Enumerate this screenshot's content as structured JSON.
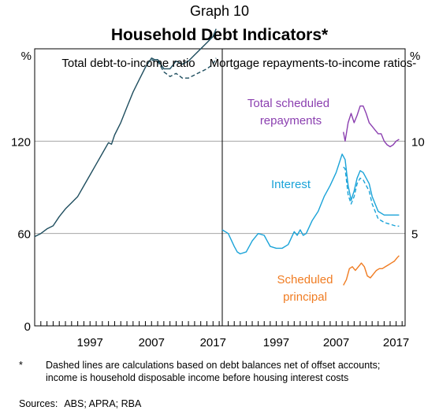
{
  "graph_number": "Graph 10",
  "title": "Household Debt Indicators*",
  "footnote": {
    "marker": "*",
    "text": "Dashed lines are calculations based on debt balances net of offset accounts; income is household disposable income before housing interest costs"
  },
  "sources": {
    "label": "Sources:",
    "value": "ABS; APRA; RBA"
  },
  "colors": {
    "debt": "#1f4e5f",
    "total_repayments": "#8b3fb0",
    "interest": "#1aa3d8",
    "principal": "#f07c22",
    "grid": "#a6a6a6"
  },
  "chart_data": [
    {
      "type": "line",
      "panel_title": "Total debt-to-income ratio",
      "y_unit": "%",
      "yticks": [
        "0",
        "60",
        "120"
      ],
      "ylim": [
        0,
        180
      ],
      "xticks": [
        "1997",
        "2007",
        "2017"
      ],
      "xlim": [
        1988,
        2018.5
      ],
      "series": [
        {
          "key": "debt_total",
          "dashed": false,
          "color": "#1f4e5f",
          "x": [
            1988,
            1989,
            1990,
            1991,
            1992,
            1993,
            1994,
            1995,
            1996,
            1997,
            1998,
            1999,
            2000,
            2000.5,
            2001,
            2002,
            2003,
            2004,
            2005,
            2006,
            2007,
            2007.5,
            2008,
            2009,
            2010,
            2011,
            2012,
            2013,
            2014,
            2015,
            2016,
            2017,
            2017.5
          ],
          "y": [
            58,
            60,
            63,
            65,
            71,
            76,
            80,
            84,
            91,
            98,
            105,
            112,
            119,
            118,
            124,
            132,
            142,
            152,
            160,
            168,
            174,
            173,
            173,
            167,
            167,
            172,
            170,
            172,
            176,
            180,
            184,
            188,
            193
          ]
        },
        {
          "key": "debt_net_offset",
          "dashed": true,
          "color": "#1f4e5f",
          "x": [
            2007,
            2007.5,
            2008,
            2009,
            2010,
            2011,
            2012,
            2013,
            2014,
            2015,
            2016,
            2017,
            2017.5
          ],
          "y": [
            173,
            172,
            172,
            165,
            162,
            164,
            161,
            161,
            163,
            165,
            167,
            170,
            174
          ]
        }
      ]
    },
    {
      "type": "line",
      "panel_title": "Mortgage repayments-to-income ratios",
      "y_unit": "%",
      "yticks": [
        "5",
        "10"
      ],
      "ylim": [
        0,
        15
      ],
      "xticks": [
        "1997",
        "2007",
        "2017"
      ],
      "xlim": [
        1988,
        2018.5
      ],
      "series": [
        {
          "key": "total_scheduled_repayments",
          "name": "Total scheduled repayments",
          "dashed": false,
          "color": "#8b3fb0",
          "x": [
            2008.2,
            2008.5,
            2009,
            2009.5,
            2010,
            2010.5,
            2011,
            2011.5,
            2012,
            2012.5,
            2013,
            2013.5,
            2014,
            2014.5,
            2015,
            2015.5,
            2016,
            2016.5,
            2017,
            2017.5
          ],
          "y": [
            10.5,
            10.0,
            11.0,
            11.5,
            11.0,
            11.4,
            11.9,
            11.9,
            11.5,
            11.0,
            10.8,
            10.6,
            10.4,
            10.4,
            10.0,
            9.8,
            9.7,
            9.8,
            10.0,
            10.1
          ]
        },
        {
          "key": "interest",
          "name": "Interest",
          "dashed": false,
          "color": "#1aa3d8",
          "x": [
            1988,
            1989,
            1990,
            1990.5,
            1991,
            1992,
            1993,
            1994,
            1995,
            1995.5,
            1996,
            1997,
            1998,
            1999,
            2000,
            2000.5,
            2001,
            2001.5,
            2002,
            2003,
            2004,
            2005,
            2006,
            2007,
            2007.5,
            2008,
            2008.5,
            2009,
            2009.5,
            2010,
            2010.5,
            2011,
            2011.5,
            2012,
            2012.5,
            2013,
            2013.5,
            2014,
            2015,
            2016,
            2017,
            2017.5
          ],
          "y": [
            5.2,
            5.0,
            4.3,
            4.0,
            3.9,
            4.0,
            4.6,
            5.0,
            4.9,
            4.6,
            4.3,
            4.2,
            4.2,
            4.4,
            5.1,
            4.9,
            5.2,
            4.9,
            5.0,
            5.7,
            6.2,
            7.0,
            7.6,
            8.3,
            8.8,
            9.3,
            9.0,
            7.6,
            6.8,
            7.3,
            8.0,
            8.4,
            8.3,
            8.0,
            7.7,
            7.0,
            6.6,
            6.2,
            6.0,
            6.0,
            6.0,
            6.0
          ]
        },
        {
          "key": "interest_net_offset",
          "dashed": true,
          "color": "#1aa3d8",
          "x": [
            2008.2,
            2008.5,
            2009,
            2009.5,
            2010,
            2010.5,
            2011,
            2011.5,
            2012,
            2012.5,
            2013,
            2013.5,
            2014,
            2015,
            2016,
            2017,
            2017.5
          ],
          "y": [
            8.6,
            8.5,
            7.1,
            6.6,
            7.0,
            7.7,
            8.0,
            7.9,
            7.6,
            7.3,
            6.6,
            6.2,
            5.8,
            5.6,
            5.5,
            5.4,
            5.4
          ]
        },
        {
          "key": "scheduled_principal",
          "name": "Scheduled principal",
          "dashed": false,
          "color": "#f07c22",
          "x": [
            2008.2,
            2008.7,
            2009.2,
            2009.7,
            2010.2,
            2010.7,
            2011.2,
            2011.7,
            2012.2,
            2012.7,
            2013.2,
            2013.7,
            2014.2,
            2014.7,
            2015.2,
            2015.7,
            2016.2,
            2016.7,
            2017.2,
            2017.5
          ],
          "y": [
            2.2,
            2.5,
            3.1,
            3.2,
            3.0,
            3.2,
            3.4,
            3.2,
            2.7,
            2.6,
            2.8,
            3.0,
            3.1,
            3.1,
            3.2,
            3.3,
            3.4,
            3.5,
            3.7,
            3.8
          ]
        }
      ]
    }
  ]
}
